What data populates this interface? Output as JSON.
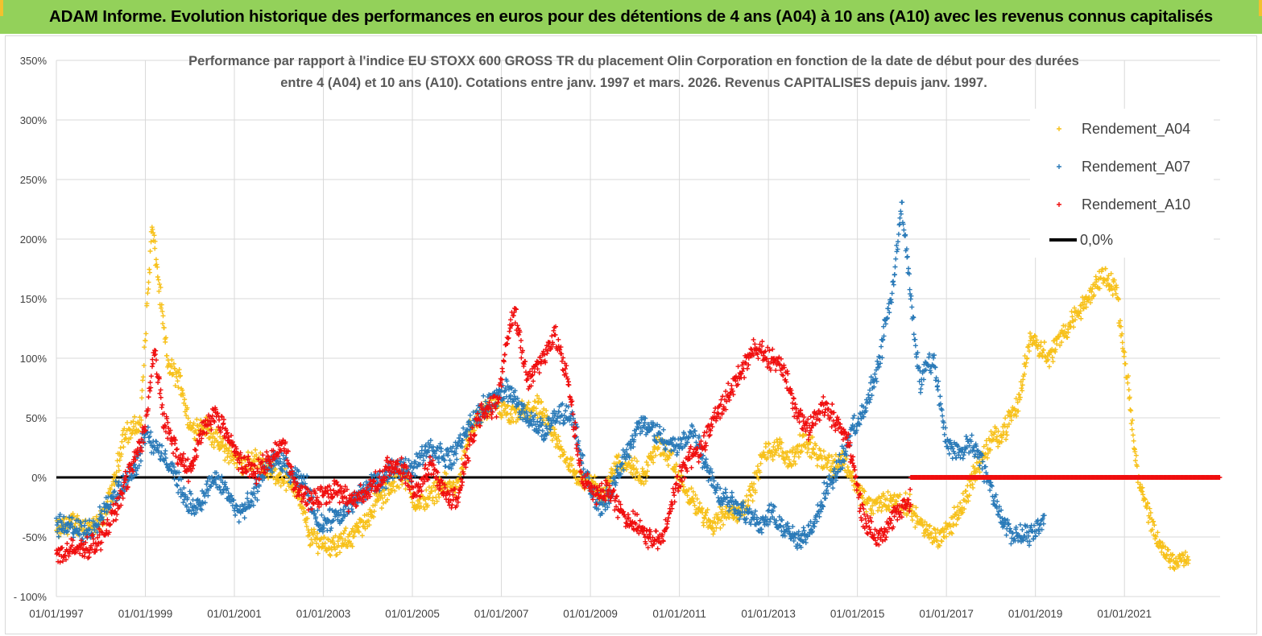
{
  "banner": {
    "title": "ADAM Informe. Evolution historique des performances en euros pour des détentions de 4 ans (A04) à 10 ans (A10) avec les revenus connus capitalisés"
  },
  "colors": {
    "banner_bg": "#93d15a",
    "a04": "#f7c11b",
    "a07": "#2a7ab8",
    "a10": "#f00f0f",
    "zero_line": "#000000",
    "grid": "#d9d9d9"
  },
  "chart_data": {
    "type": "scatter",
    "title_line1": "Performance par rapport à l'indice EU STOXX 600 GROSS TR  du placement Olin Corporation en fonction de la date de début pour des durées",
    "title_line2": "entre 4 (A04) et 10 ans (A10). Cotations entre janv. 1997 et mars. 2026. Revenus CAPITALISES depuis janv. 1997.",
    "xlabel": "",
    "ylabel": "",
    "x_range": [
      1997.0,
      2023.15
    ],
    "ylim": [
      -100,
      350
    ],
    "y_ticks": [
      -100,
      -50,
      0,
      50,
      100,
      150,
      200,
      250,
      300,
      350
    ],
    "y_tick_labels": [
      "- 100%",
      "-50%",
      "0%",
      "50%",
      "100%",
      "150%",
      "200%",
      "250%",
      "300%",
      "350%"
    ],
    "x_ticks": [
      1997,
      1999,
      2001,
      2003,
      2005,
      2007,
      2009,
      2011,
      2013,
      2015,
      2017,
      2019,
      2021
    ],
    "x_tick_labels": [
      "01/01/1997",
      "01/01/1999",
      "01/01/2001",
      "01/01/2003",
      "01/01/2005",
      "01/01/2007",
      "01/01/2009",
      "01/01/2011",
      "01/01/2013",
      "01/01/2015",
      "01/01/2017",
      "01/01/2019",
      "01/01/2021"
    ],
    "grid": true,
    "legend_position": "top-right",
    "series": [
      {
        "name": "Rendement_A04",
        "marker": "+",
        "x": [
          1997.0,
          1997.3,
          1997.6,
          1997.9,
          1998.1,
          1998.3,
          1998.5,
          1998.7,
          1998.9,
          1999.0,
          1999.15,
          1999.25,
          1999.5,
          1999.8,
          2000.0,
          2000.3,
          2000.6,
          2000.9,
          2001.2,
          2001.5,
          2001.8,
          2002.1,
          2002.4,
          2002.7,
          2003.0,
          2003.3,
          2003.6,
          2003.9,
          2004.2,
          2004.5,
          2004.8,
          2005.1,
          2005.4,
          2005.7,
          2006.0,
          2006.3,
          2006.6,
          2006.9,
          2007.2,
          2007.5,
          2007.8,
          2008.1,
          2008.4,
          2008.7,
          2009.0,
          2009.3,
          2009.6,
          2009.9,
          2010.2,
          2010.5,
          2010.8,
          2011.1,
          2011.4,
          2011.7,
          2012.0,
          2012.3,
          2012.6,
          2012.9,
          2013.2,
          2013.5,
          2013.8,
          2014.1,
          2014.4,
          2014.7,
          2015.0,
          2015.3,
          2015.6,
          2015.9,
          2016.2,
          2016.5,
          2016.8,
          2017.1,
          2017.4,
          2017.7,
          2018.0,
          2018.3,
          2018.6,
          2018.9,
          2019.1,
          2019.3,
          2019.6,
          2019.9,
          2020.2,
          2020.5,
          2020.8,
          2020.95,
          2021.1,
          2021.3,
          2021.6,
          2021.9,
          2022.2,
          2022.45
        ],
        "y": [
          -45,
          -38,
          -40,
          -42,
          -30,
          -5,
          35,
          40,
          45,
          120,
          210,
          180,
          95,
          80,
          40,
          45,
          30,
          20,
          10,
          15,
          5,
          0,
          -10,
          -50,
          -55,
          -58,
          -50,
          -40,
          -20,
          -10,
          5,
          -25,
          -15,
          -5,
          -10,
          40,
          55,
          60,
          50,
          55,
          60,
          40,
          20,
          0,
          -5,
          -15,
          15,
          10,
          0,
          30,
          15,
          -10,
          -25,
          -40,
          -30,
          -30,
          -15,
          20,
          25,
          15,
          30,
          20,
          10,
          15,
          -10,
          -25,
          -20,
          -20,
          -25,
          -45,
          -50,
          -40,
          -20,
          10,
          30,
          40,
          60,
          120,
          110,
          100,
          120,
          135,
          150,
          170,
          160,
          120,
          70,
          0,
          -40,
          -65,
          -70,
          -68
        ]
      },
      {
        "name": "Rendement_A07",
        "marker": "+",
        "x": [
          1997.0,
          1997.3,
          1997.6,
          1997.9,
          1998.2,
          1998.5,
          1998.8,
          1999.0,
          1999.3,
          1999.6,
          1999.9,
          2000.2,
          2000.5,
          2000.8,
          2001.1,
          2001.4,
          2001.7,
          2002.0,
          2002.3,
          2002.6,
          2002.9,
          2003.2,
          2003.5,
          2003.8,
          2004.1,
          2004.4,
          2004.7,
          2005.0,
          2005.3,
          2005.6,
          2005.9,
          2006.2,
          2006.5,
          2006.8,
          2007.1,
          2007.4,
          2007.7,
          2008.0,
          2008.3,
          2008.6,
          2008.9,
          2009.2,
          2009.5,
          2009.8,
          2010.1,
          2010.4,
          2010.7,
          2011.0,
          2011.3,
          2011.6,
          2011.9,
          2012.2,
          2012.5,
          2012.8,
          2013.1,
          2013.4,
          2013.7,
          2014.0,
          2014.3,
          2014.6,
          2014.9,
          2015.2,
          2015.5,
          2015.8,
          2016.0,
          2016.2,
          2016.4,
          2016.7,
          2017.0,
          2017.3,
          2017.6,
          2017.9,
          2018.2,
          2018.5,
          2018.8,
          2019.0,
          2019.2
        ],
        "y": [
          -40,
          -42,
          -45,
          -38,
          -20,
          -5,
          10,
          40,
          20,
          10,
          -20,
          -25,
          0,
          -10,
          -30,
          -20,
          10,
          15,
          0,
          -5,
          -40,
          -35,
          -30,
          -15,
          -5,
          0,
          10,
          5,
          25,
          20,
          15,
          40,
          55,
          65,
          75,
          60,
          45,
          40,
          55,
          50,
          0,
          -25,
          -10,
          20,
          45,
          40,
          30,
          25,
          40,
          10,
          -15,
          -20,
          -30,
          -40,
          -30,
          -45,
          -55,
          -40,
          -10,
          10,
          40,
          60,
          100,
          160,
          230,
          150,
          80,
          100,
          30,
          20,
          30,
          0,
          -30,
          -50,
          -50,
          -45,
          -35
        ]
      },
      {
        "name": "Rendement_A10",
        "marker": "+",
        "x": [
          1997.0,
          1997.3,
          1997.6,
          1997.9,
          1998.2,
          1998.5,
          1998.8,
          1999.0,
          1999.2,
          1999.4,
          1999.7,
          2000.0,
          2000.3,
          2000.6,
          2000.9,
          2001.2,
          2001.5,
          2001.8,
          2002.1,
          2002.4,
          2002.7,
          2003.0,
          2003.3,
          2003.6,
          2003.9,
          2004.2,
          2004.5,
          2004.8,
          2005.1,
          2005.4,
          2005.7,
          2006.0,
          2006.3,
          2006.6,
          2006.9,
          2007.1,
          2007.3,
          2007.6,
          2007.9,
          2008.2,
          2008.5,
          2008.8,
          2009.1,
          2009.4,
          2009.7,
          2010.0,
          2010.3,
          2010.6,
          2010.9,
          2011.2,
          2011.5,
          2011.8,
          2012.1,
          2012.4,
          2012.7,
          2013.0,
          2013.3,
          2013.6,
          2013.9,
          2014.2,
          2014.5,
          2014.8,
          2015.1,
          2015.4,
          2015.7,
          2016.0,
          2016.2
        ],
        "y": [
          -65,
          -62,
          -60,
          -55,
          -40,
          -10,
          20,
          40,
          110,
          50,
          20,
          5,
          40,
          55,
          30,
          10,
          5,
          15,
          30,
          -10,
          -20,
          -15,
          -10,
          -20,
          -15,
          -5,
          10,
          5,
          -15,
          10,
          -10,
          -20,
          30,
          60,
          60,
          110,
          140,
          80,
          100,
          120,
          80,
          0,
          -15,
          -10,
          -30,
          -40,
          -50,
          -55,
          -10,
          15,
          25,
          50,
          70,
          90,
          110,
          100,
          95,
          60,
          40,
          60,
          50,
          30,
          -30,
          -50,
          -40,
          -25,
          -20
        ]
      },
      {
        "name": "0,0%",
        "type": "line",
        "x": [
          1997.0,
          2023.15
        ],
        "y": [
          0,
          0
        ]
      }
    ],
    "flat_zero_markers": [
      {
        "series": "Rendement_A10",
        "x_start": 2016.2,
        "x_end": 2023.15,
        "y": 0
      }
    ]
  }
}
